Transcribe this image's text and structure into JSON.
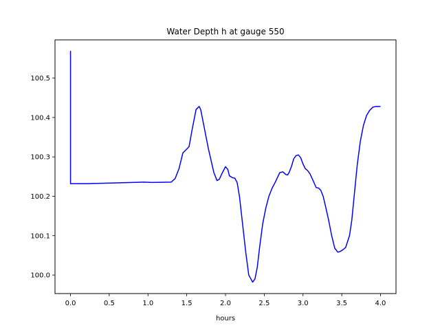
{
  "chart_data": {
    "type": "line",
    "title": "Water Depth h at gauge 550",
    "xlabel": "hours",
    "ylabel": "",
    "xlim": [
      -0.2,
      4.2
    ],
    "ylim": [
      99.953,
      100.597
    ],
    "grid": false,
    "x_ticks": [
      {
        "value": 0.0,
        "label": "0.0"
      },
      {
        "value": 0.5,
        "label": "0.5"
      },
      {
        "value": 1.0,
        "label": "1.0"
      },
      {
        "value": 1.5,
        "label": "1.5"
      },
      {
        "value": 2.0,
        "label": "2.0"
      },
      {
        "value": 2.5,
        "label": "2.5"
      },
      {
        "value": 3.0,
        "label": "3.0"
      },
      {
        "value": 3.5,
        "label": "3.5"
      },
      {
        "value": 4.0,
        "label": "4.0"
      }
    ],
    "y_ticks": [
      {
        "value": 100.0,
        "label": "100.0"
      },
      {
        "value": 100.1,
        "label": "100.1"
      },
      {
        "value": 100.2,
        "label": "100.2"
      },
      {
        "value": 100.3,
        "label": "100.3"
      },
      {
        "value": 100.4,
        "label": "100.4"
      },
      {
        "value": 100.5,
        "label": "100.5"
      }
    ],
    "series": [
      {
        "color": "#0000ff",
        "x": [
          0.0,
          0.0,
          0.0,
          0.2,
          0.6,
          0.95,
          1.05,
          1.3,
          1.35,
          1.4,
          1.45,
          1.5,
          1.53,
          1.57,
          1.62,
          1.66,
          1.68,
          1.72,
          1.78,
          1.85,
          1.89,
          1.92,
          1.96,
          2.0,
          2.03,
          2.05,
          2.09,
          2.12,
          2.15,
          2.18,
          2.22,
          2.26,
          2.3,
          2.35,
          2.38,
          2.41,
          2.44,
          2.48,
          2.52,
          2.56,
          2.6,
          2.64,
          2.7,
          2.74,
          2.78,
          2.8,
          2.82,
          2.85,
          2.88,
          2.91,
          2.94,
          2.97,
          3.0,
          3.03,
          3.06,
          3.09,
          3.13,
          3.17,
          3.2,
          3.23,
          3.26,
          3.29,
          3.33,
          3.37,
          3.41,
          3.45,
          3.48,
          3.52,
          3.55,
          3.6,
          3.63,
          3.66,
          3.7,
          3.74,
          3.78,
          3.82,
          3.86,
          3.9,
          3.94,
          3.97,
          4.0
        ],
        "y": [
          100.232,
          100.568,
          100.232,
          100.232,
          100.234,
          100.236,
          100.235,
          100.236,
          100.245,
          100.27,
          100.31,
          100.32,
          100.326,
          100.37,
          100.42,
          100.428,
          100.42,
          100.38,
          100.32,
          100.26,
          100.24,
          100.243,
          100.26,
          100.275,
          100.268,
          100.252,
          100.247,
          100.246,
          100.235,
          100.2,
          100.13,
          100.06,
          100.0,
          99.982,
          99.99,
          100.02,
          100.07,
          100.13,
          100.17,
          100.2,
          100.22,
          100.235,
          100.26,
          100.262,
          100.255,
          100.254,
          100.26,
          100.275,
          100.295,
          100.303,
          100.305,
          100.298,
          100.282,
          100.27,
          100.265,
          100.257,
          100.24,
          100.222,
          100.221,
          100.215,
          100.2,
          100.175,
          100.14,
          100.1,
          100.068,
          100.058,
          100.06,
          100.065,
          100.07,
          100.1,
          100.14,
          100.2,
          100.28,
          100.34,
          100.38,
          100.405,
          100.418,
          100.426,
          100.428,
          100.428,
          100.428
        ]
      }
    ]
  }
}
